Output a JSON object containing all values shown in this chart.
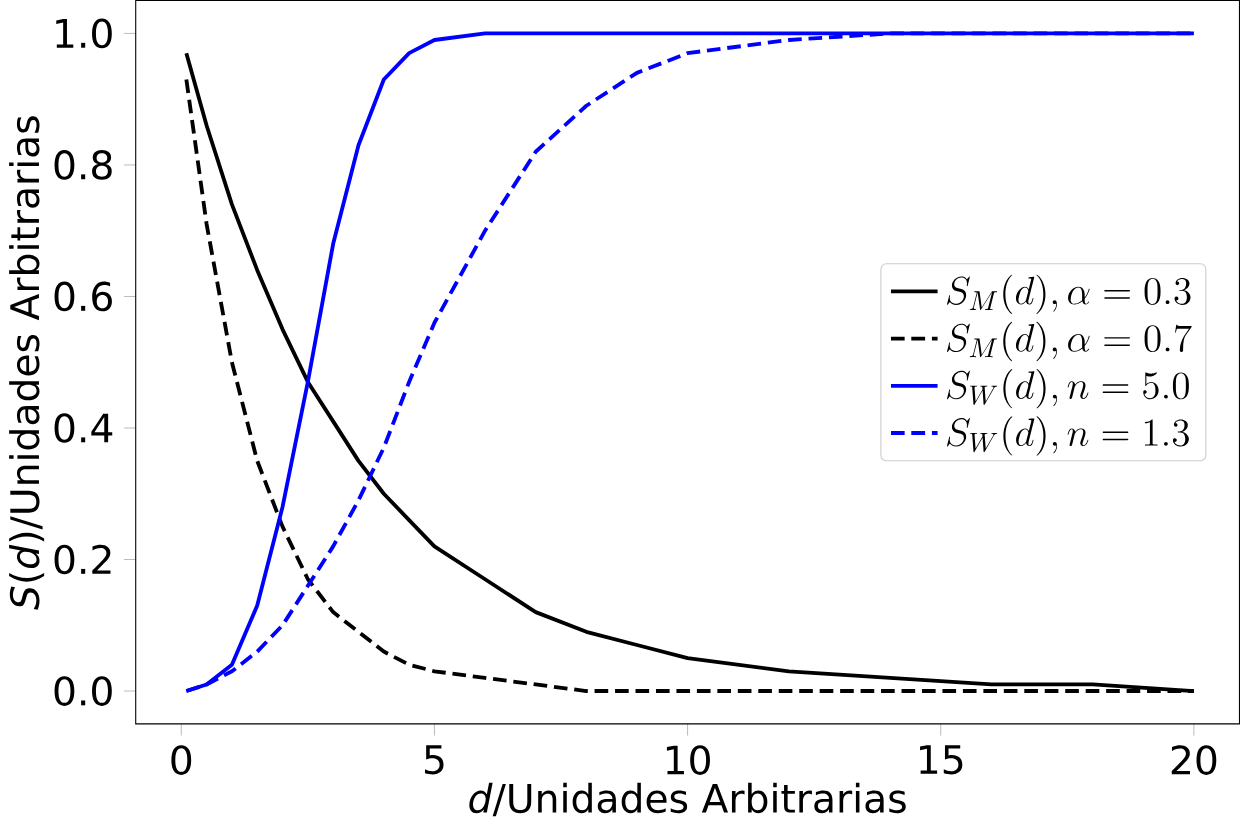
{
  "chart_data": {
    "type": "line",
    "xlabel": "*d*/Unidades Arbitrarias",
    "ylabel": "*S*(*d*)/Unidades Arbitrarias",
    "x": [
      0.1,
      0.5,
      1,
      1.5,
      2,
      2.5,
      3,
      3.5,
      4,
      4.5,
      5,
      6,
      7,
      8,
      9,
      10,
      12,
      14,
      16,
      18,
      20
    ],
    "series": [
      {
        "name": "S_M(d), \\alpha = 0.3",
        "color": "#000000",
        "line_style": "solid",
        "values": [
          0.97,
          0.86,
          0.74,
          0.64,
          0.55,
          0.47,
          0.41,
          0.35,
          0.3,
          0.26,
          0.22,
          0.17,
          0.12,
          0.09,
          0.07,
          0.05,
          0.03,
          0.02,
          0.01,
          0.01,
          0.0
        ]
      },
      {
        "name": "S_M(d), \\alpha = 0.7",
        "color": "#000000",
        "line_style": "dashed",
        "values": [
          0.93,
          0.71,
          0.5,
          0.35,
          0.25,
          0.17,
          0.12,
          0.09,
          0.06,
          0.04,
          0.03,
          0.02,
          0.01,
          0.0,
          0.0,
          0.0,
          0.0,
          0.0,
          0.0,
          0.0,
          0.0
        ]
      },
      {
        "name": "S_W(d), n = 5.0",
        "color": "#0000ff",
        "line_style": "solid",
        "values": [
          0.0,
          0.01,
          0.04,
          0.13,
          0.28,
          0.47,
          0.68,
          0.83,
          0.93,
          0.97,
          0.99,
          1.0,
          1.0,
          1.0,
          1.0,
          1.0,
          1.0,
          1.0,
          1.0,
          1.0,
          1.0
        ]
      },
      {
        "name": "S_W(d), n = 1.3",
        "color": "#0000ff",
        "line_style": "dashed",
        "values": [
          0.0,
          0.01,
          0.03,
          0.06,
          0.1,
          0.16,
          0.22,
          0.29,
          0.37,
          0.47,
          0.56,
          0.7,
          0.82,
          0.89,
          0.94,
          0.97,
          0.99,
          1.0,
          1.0,
          1.0,
          1.0
        ]
      }
    ],
    "xlim": [
      -0.9,
      20.9
    ],
    "ylim": [
      -0.05,
      1.05
    ],
    "xticks": [
      0,
      5,
      10,
      15,
      20
    ],
    "yticks": [
      {
        "value": 0,
        "label": "0.0"
      },
      {
        "value": 0.2,
        "label": "0.2"
      },
      {
        "value": 0.4,
        "label": "0.4"
      },
      {
        "value": 0.6,
        "label": "0.6"
      },
      {
        "value": 0.8,
        "label": "0.8"
      },
      {
        "value": 1.0,
        "label": "1.0"
      }
    ],
    "legend": "right",
    "grid": false
  }
}
